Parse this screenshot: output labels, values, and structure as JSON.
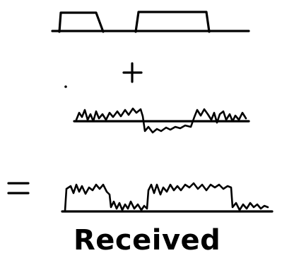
{
  "diagram": {
    "caption": "Received",
    "plus_symbol": "+",
    "equals_symbol": "="
  },
  "colors": {
    "ink": "#000000",
    "background": "#ffffff"
  }
}
